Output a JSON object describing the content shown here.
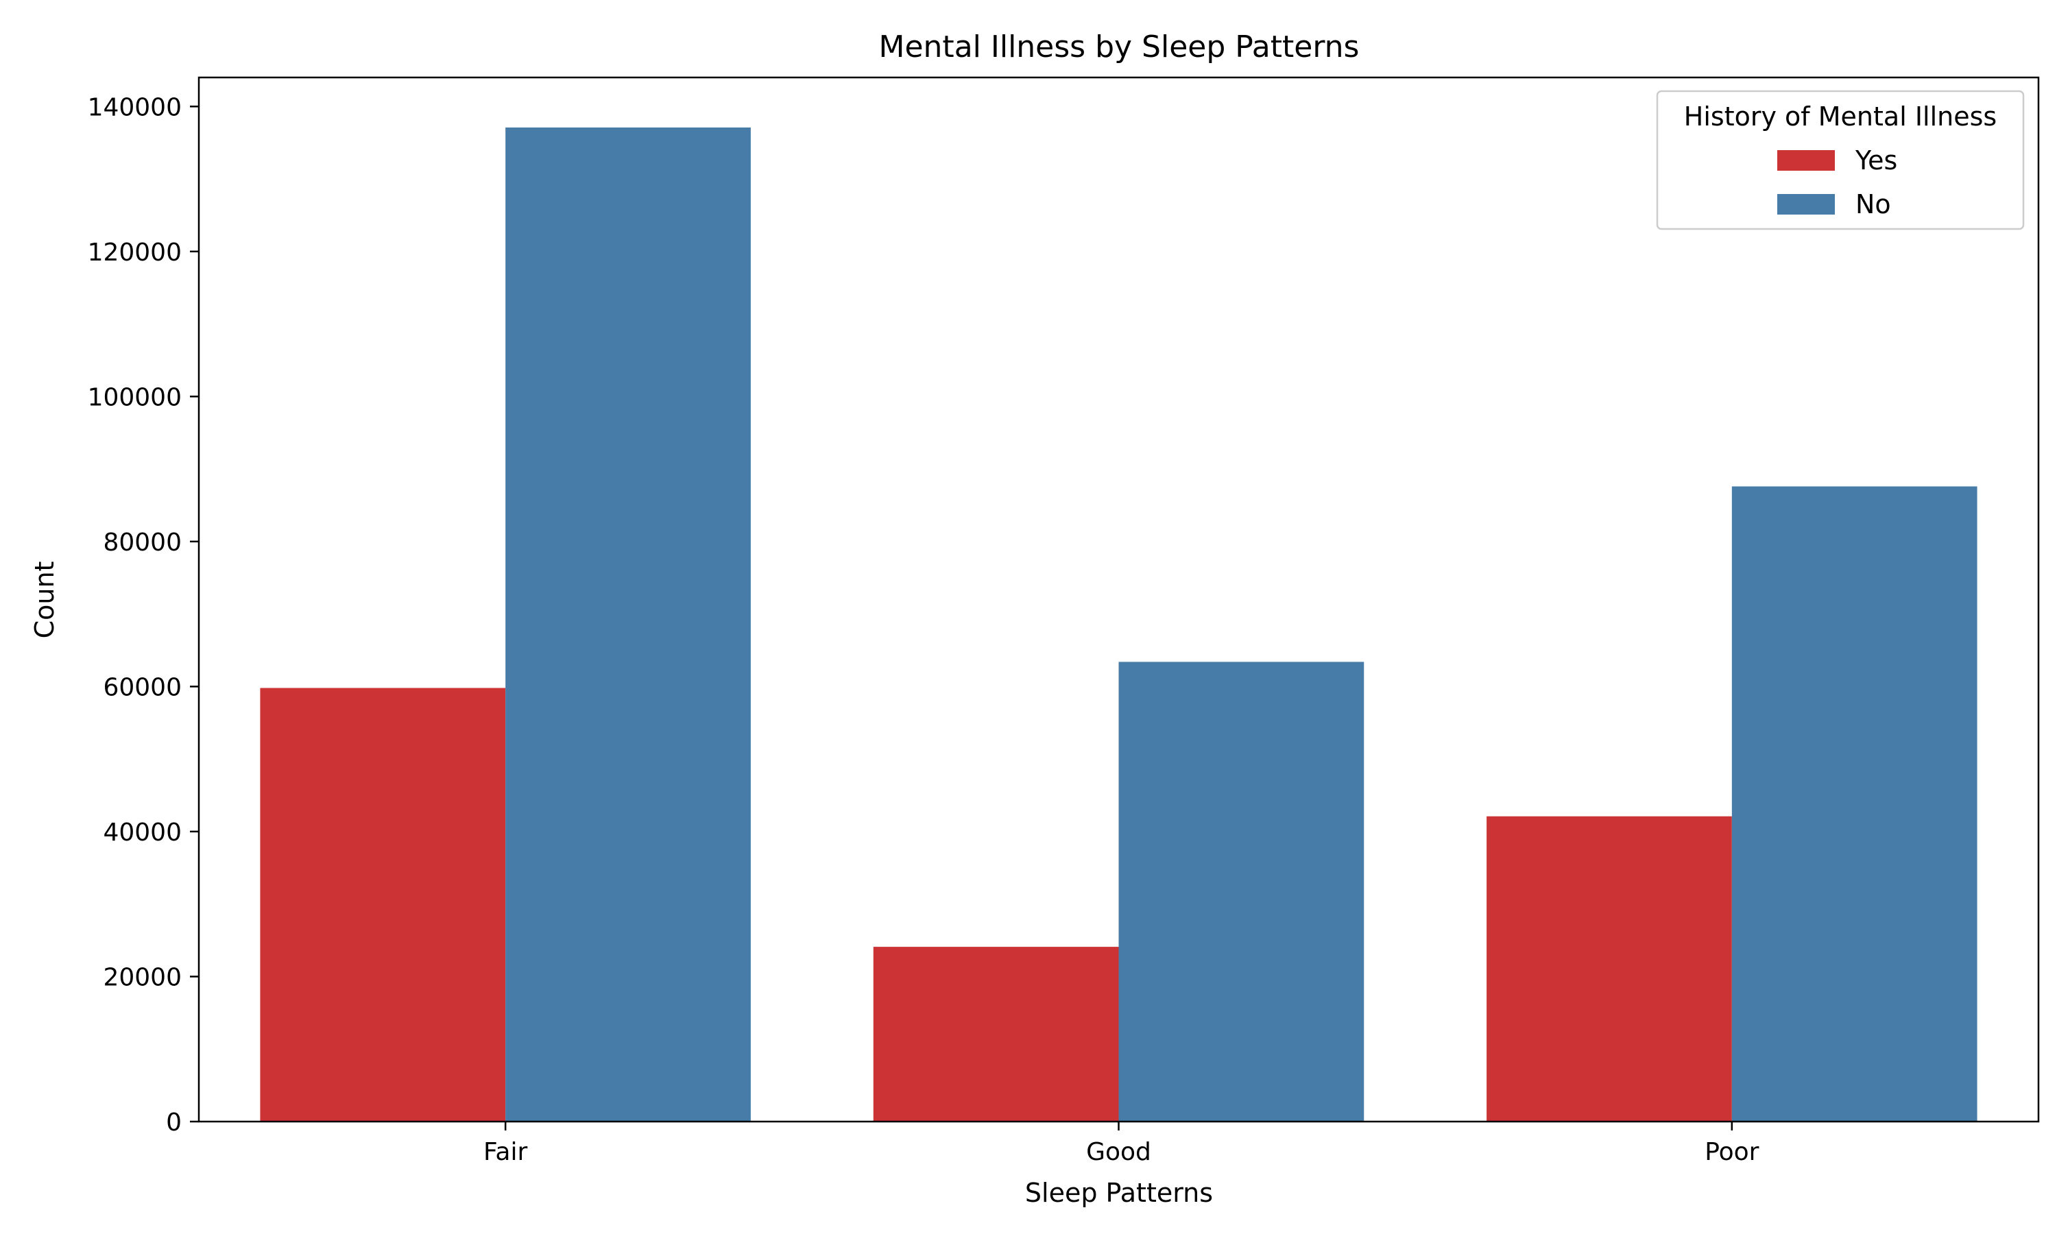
{
  "chart_data": {
    "type": "bar",
    "title": "Mental Illness by Sleep Patterns",
    "xlabel": "Sleep Patterns",
    "ylabel": "Count",
    "categories": [
      "Fair",
      "Good",
      "Poor"
    ],
    "series": [
      {
        "name": "Yes",
        "values": [
          59800,
          24100,
          42100
        ],
        "color": "#cb3335"
      },
      {
        "name": "No",
        "values": [
          137100,
          63400,
          87600
        ],
        "color": "#477ca8"
      }
    ],
    "ylim": [
      0,
      144000
    ],
    "yticks": [
      0,
      20000,
      40000,
      60000,
      80000,
      100000,
      120000,
      140000
    ],
    "ytick_labels": [
      "0",
      "20000",
      "40000",
      "60000",
      "80000",
      "100000",
      "120000",
      "140000"
    ],
    "grid": false,
    "legend": {
      "title": "History of Mental Illness",
      "placement": "top-right"
    }
  }
}
